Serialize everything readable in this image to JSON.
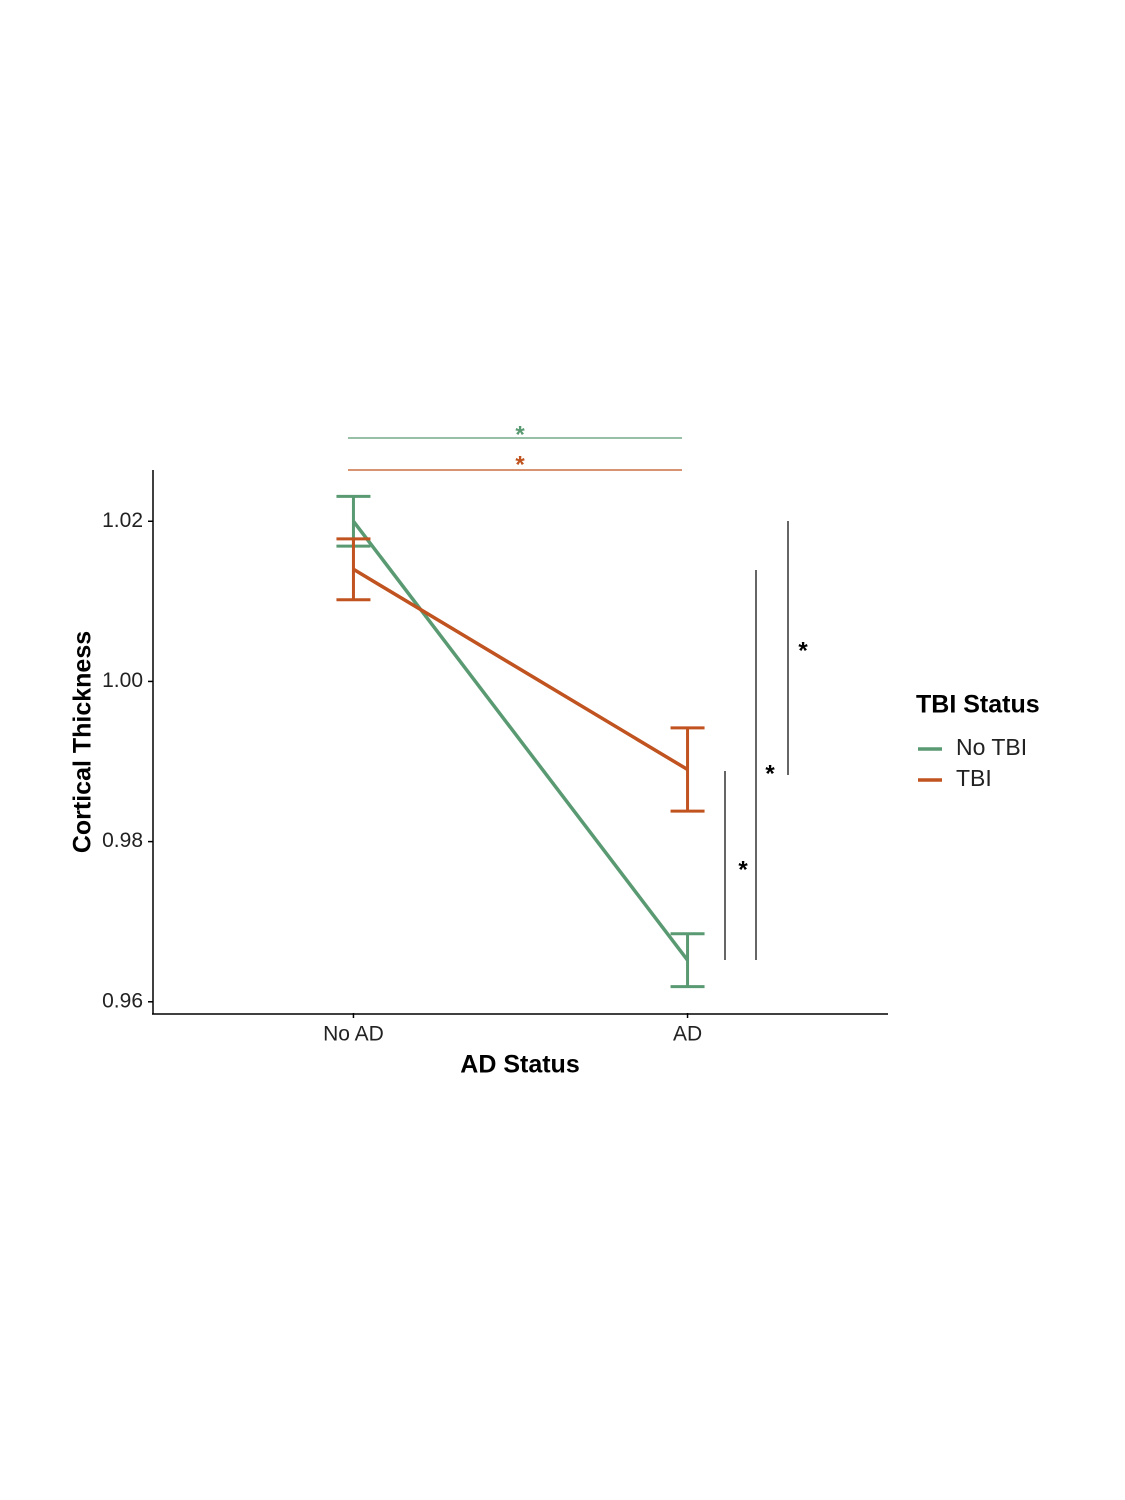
{
  "chart_data": {
    "type": "line",
    "x_label": "AD Status",
    "y_label": "Cortical Thickness",
    "categories": [
      "No AD",
      "AD"
    ],
    "series": [
      {
        "name": "No TBI",
        "color": "#5a9a72",
        "values": [
          1.02,
          0.9652
        ],
        "errors": [
          0.0031,
          0.0033
        ]
      },
      {
        "name": "TBI",
        "color": "#c0531f",
        "values": [
          1.014,
          0.989
        ],
        "errors": [
          0.0038,
          0.0052
        ]
      }
    ],
    "ylim": [
      0.9586,
      1.0264
    ],
    "yticks": [
      0.96,
      0.98,
      {
        "value": 1,
        "label": "1.00"
      },
      1.02
    ],
    "legend_title": "TBI Status",
    "legend_position": "right",
    "annotations": [
      {
        "text": "*",
        "color": "#5a9a72"
      },
      {
        "text": "*",
        "color": "#c0531f"
      },
      {
        "text": "*",
        "color": "#000000"
      },
      {
        "text": "*",
        "color": "#000000"
      },
      {
        "text": "*",
        "color": "#000000"
      }
    ]
  }
}
